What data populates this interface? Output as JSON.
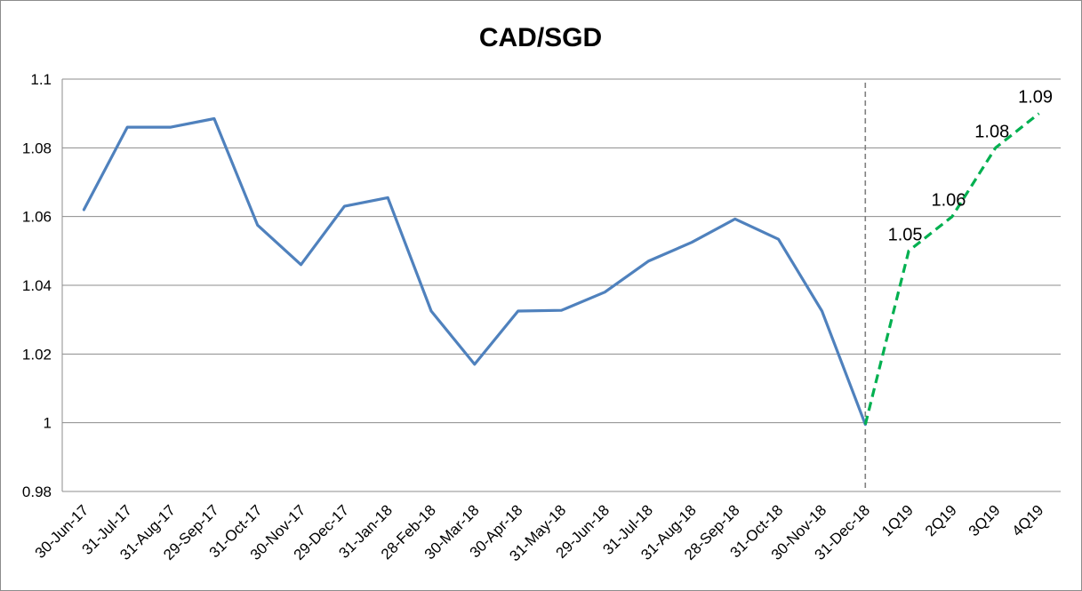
{
  "chart_data": {
    "type": "line",
    "title": "CAD/SGD",
    "xlabel": "",
    "ylabel": "",
    "categories": [
      "30-Jun-17",
      "31-Jul-17",
      "31-Aug-17",
      "29-Sep-17",
      "31-Oct-17",
      "30-Nov-17",
      "29-Dec-17",
      "31-Jan-18",
      "28-Feb-18",
      "30-Mar-18",
      "30-Apr-18",
      "31-May-18",
      "29-Jun-18",
      "31-Jul-18",
      "31-Aug-18",
      "28-Sep-18",
      "31-Oct-18",
      "30-Nov-18",
      "31-Dec-18",
      "1Q19",
      "2Q19",
      "3Q19",
      "4Q19"
    ],
    "ylim": [
      0.98,
      1.1
    ],
    "yticks": [
      "0.98",
      "1",
      "1.02",
      "1.04",
      "1.06",
      "1.08",
      "1.1"
    ],
    "grid": true,
    "legend": "none",
    "series": [
      {
        "style": "solid",
        "color": "#4f81bd",
        "x": [
          "30-Jun-17",
          "31-Jul-17",
          "31-Aug-17",
          "29-Sep-17",
          "31-Oct-17",
          "30-Nov-17",
          "29-Dec-17",
          "31-Jan-18",
          "28-Feb-18",
          "30-Mar-18",
          "30-Apr-18",
          "31-May-18",
          "29-Jun-18",
          "31-Jul-18",
          "31-Aug-18",
          "28-Sep-18",
          "31-Oct-18",
          "30-Nov-18",
          "31-Dec-18"
        ],
        "values": [
          1.062,
          1.086,
          1.086,
          1.0885,
          1.0575,
          1.046,
          1.063,
          1.0655,
          1.0325,
          1.017,
          1.0325,
          1.0327,
          1.038,
          1.047,
          1.0525,
          1.0593,
          1.0534,
          1.0325,
          0.9995
        ]
      },
      {
        "style": "dashed",
        "color": "#00b050",
        "x": [
          "31-Dec-18",
          "1Q19",
          "2Q19",
          "3Q19",
          "4Q19"
        ],
        "values": [
          0.9995,
          1.05,
          1.06,
          1.08,
          1.09
        ],
        "data_labels": [
          "",
          "1.05",
          "1.06",
          "1.08",
          "1.09"
        ]
      }
    ],
    "vline": {
      "at": "31-Dec-18",
      "style": "dashed",
      "color": "#808080"
    }
  }
}
